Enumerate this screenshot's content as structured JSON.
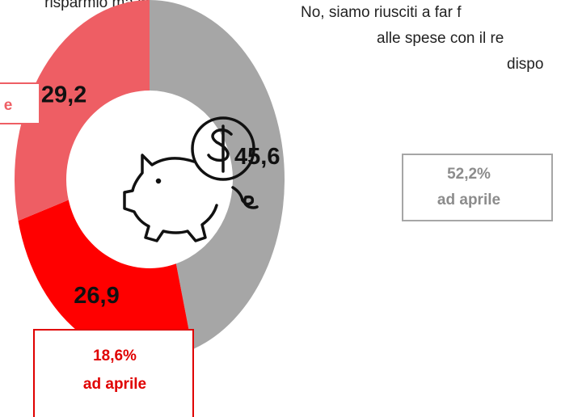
{
  "chart_data": {
    "type": "donut",
    "categories": [
      null,
      null,
      null
    ],
    "values": [
      45.6,
      26.9,
      29.2
    ],
    "value_labels": [
      "45,6",
      "26,9",
      "29,2"
    ],
    "colors": [
      "#a6a6a6",
      "#ff0000",
      "#ee5e64"
    ],
    "annotations": {
      "left_note": "risparmio ma in",
      "right_note": [
        "No, siamo riusciti a far f",
        "alle spese con il re",
        "dispo"
      ],
      "gray_box": [
        "52,2%",
        "ad aprile"
      ],
      "red_box": [
        "18,6%",
        "ad aprile"
      ],
      "pink_box": "e"
    }
  }
}
